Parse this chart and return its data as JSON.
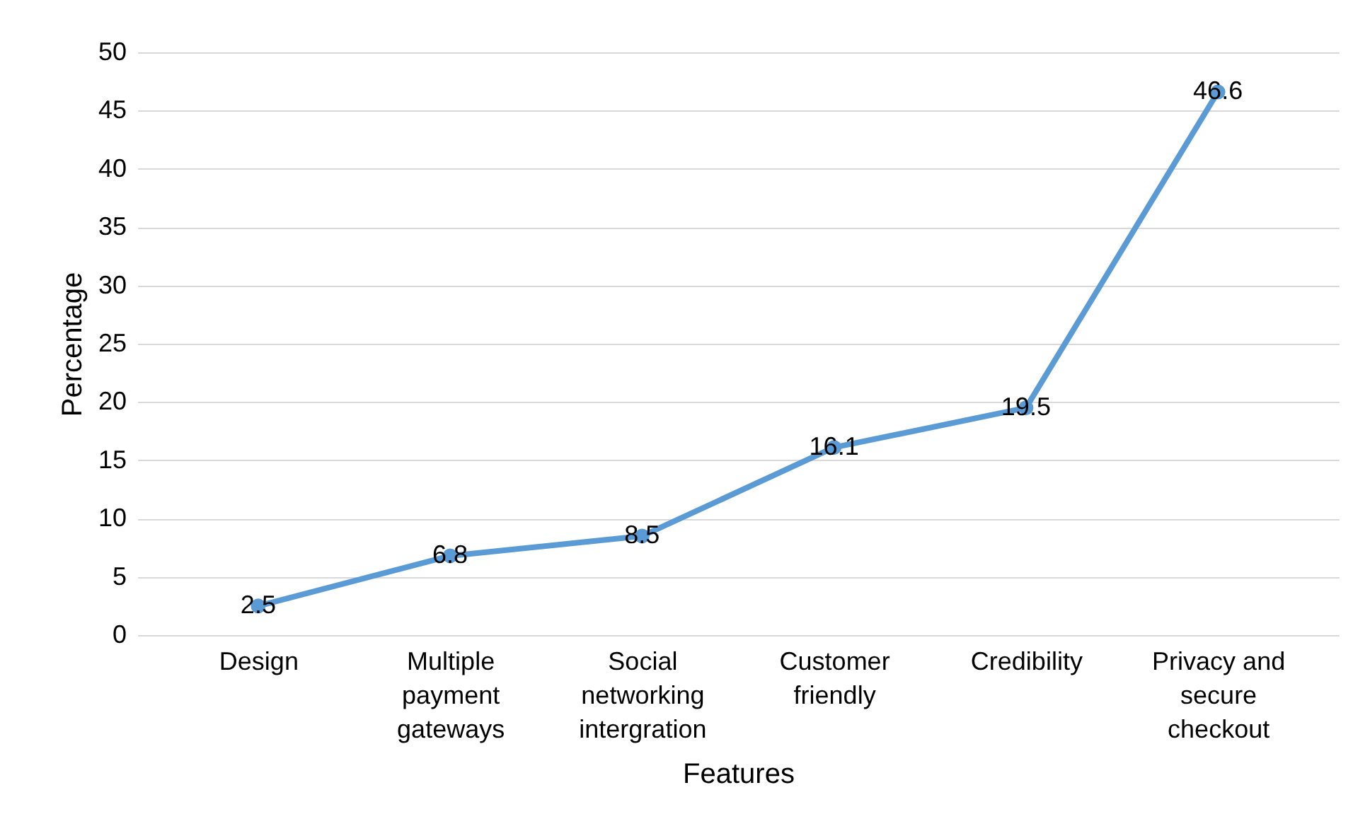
{
  "chart_data": {
    "type": "line",
    "xlabel": "Features",
    "ylabel": "Percentage",
    "categories": [
      "Design",
      "Multiple\npayment\ngateways",
      "Social\nnetworking\nintergration",
      "Customer\nfriendly",
      "Credibility",
      "Privacy and\nsecure\ncheckout"
    ],
    "series": [
      {
        "color": "#5b9bd5",
        "values": [
          2.5,
          6.8,
          8.5,
          16.1,
          19.5,
          46.6
        ]
      }
    ],
    "ylim": [
      0,
      50
    ],
    "yticks": [
      0,
      5,
      10,
      15,
      20,
      25,
      30,
      35,
      40,
      45,
      50
    ],
    "grid": "y",
    "marker": "circle",
    "data_labels": true
  }
}
